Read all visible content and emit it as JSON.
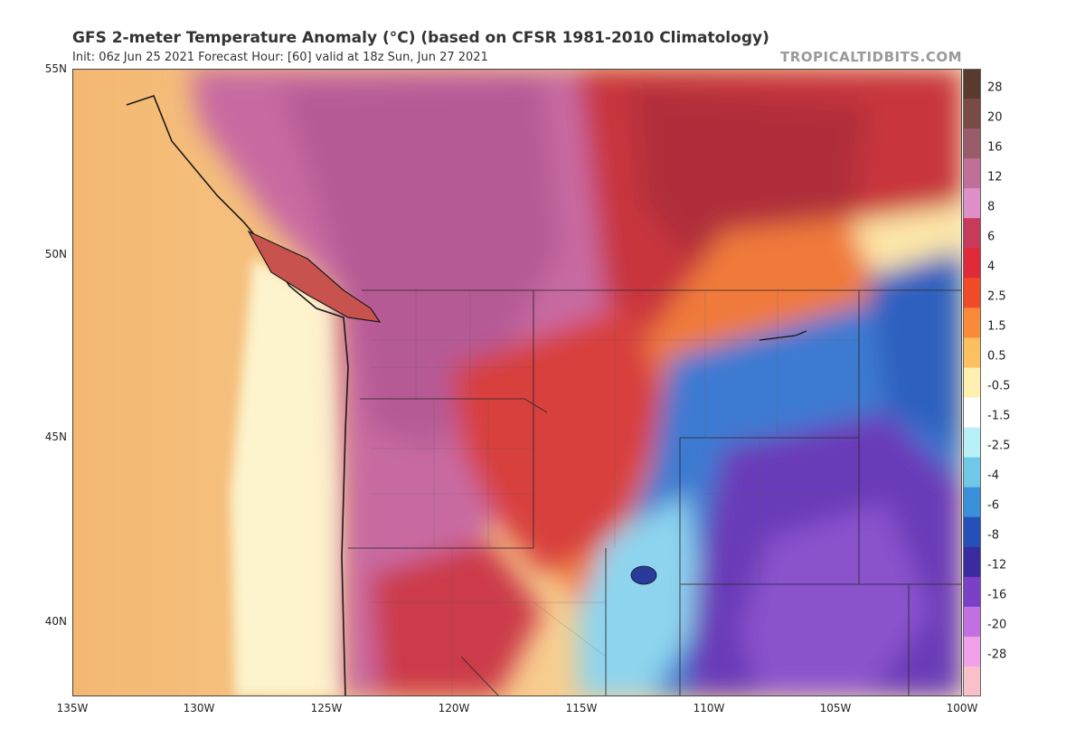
{
  "header": {
    "title": "GFS 2-meter Temperature Anomaly (°C) (based on CFSR 1981-2010 Climatology)",
    "subtitle": "Init: 06z Jun 25 2021   Forecast Hour: [60]   valid at 18z Sun, Jun 27 2021",
    "brand": "TROPICALTIDBITS.COM"
  },
  "map": {
    "lat_labels": [
      "55N",
      "50N",
      "45N",
      "40N"
    ],
    "lon_labels": [
      "135W",
      "130W",
      "125W",
      "120W",
      "115W",
      "110W",
      "105W",
      "100W"
    ]
  },
  "colorbar": {
    "labels": [
      "28",
      "20",
      "16",
      "12",
      "8",
      "6",
      "4",
      "2.5",
      "1.5",
      "0.5",
      "-0.5",
      "-1.5",
      "-2.5",
      "-4",
      "-6",
      "-8",
      "-12",
      "-16",
      "-20",
      "-28"
    ],
    "colors": [
      "#5a3a2e",
      "#7a4a45",
      "#9a5c68",
      "#c07098",
      "#e090c8",
      "#c83a5a",
      "#e02a3a",
      "#f04a28",
      "#f88a3a",
      "#fcc060",
      "#fdf0b0",
      "#ffffff",
      "#b8f0f8",
      "#70c8e8",
      "#3a90d8",
      "#2450b8",
      "#3a2aa0",
      "#7a40c8",
      "#c070e0",
      "#f0a0e8",
      "#f8c0c8"
    ]
  },
  "legend_colors": {
    "ocean": "#f7c98a",
    "coastal_cool": "#fbe9b8",
    "warm_red": "#d63a3a",
    "hot_magenta": "#c55fa0",
    "cool_blue": "#3a7ad0",
    "cold_purple": "#7a3ab8"
  }
}
